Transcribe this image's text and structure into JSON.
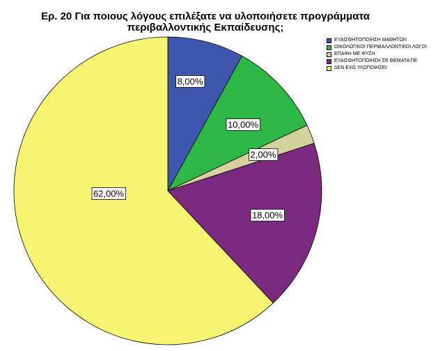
{
  "chart_data": {
    "type": "pie",
    "title_line1": "Ερ.  20    Για ποιους λόγους επιλέξατε να υλοποιήσετε προγράμματα",
    "title_line2": "περιβαλλοντικής Εκπαίδευσης;",
    "start_angle_deg": 0,
    "direction": "clockwise",
    "legend_position": "top-right",
    "slices": [
      {
        "label": "ΕΥΑΙΣΘΗΤΟΠΟΙΗΣΗ ΜΑΘΗΤΩΝ",
        "value": 8.0,
        "value_label": "8,00%",
        "color": "#3e56ad"
      },
      {
        "label": "ΟΙΚΟΛΟΓΙΚΟΙ ΠΕΡΙΒΑΛΛΟΝΤΙΚΟΙ ΛΟΓΟΙ",
        "value": 10.0,
        "value_label": "10,00%",
        "color": "#2db744"
      },
      {
        "label": "ΕΠΑΦΗ ΜΕ ΦΥΣΗ",
        "value": 2.0,
        "value_label": "2,00%",
        "color": "#d6d29e"
      },
      {
        "label": "ΕΥΑΙΣΘΗΤΟΠΟΙΗΣΗ ΣΕ ΘΕΜΑΤΑ ΠΕ",
        "value": 18.0,
        "value_label": "18,00%",
        "color": "#7b2a7f"
      },
      {
        "label": "ΔΕΝ ΕΧΩ ΥΛΟΠΟΙΗΣΕΙ",
        "value": 62.0,
        "value_label": "62,00%",
        "color": "#f7f472"
      }
    ]
  }
}
